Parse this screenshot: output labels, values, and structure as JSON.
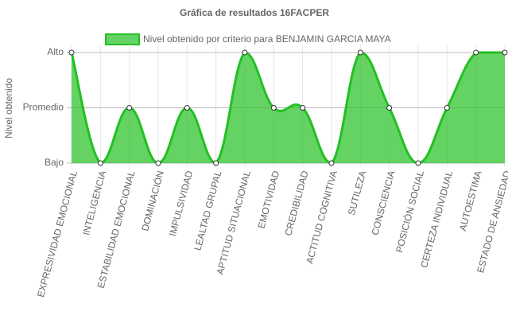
{
  "chart_data": {
    "type": "line",
    "title": "Gráfica de resultados 16FACPER",
    "y_label": "Nivel obtenido",
    "categories": [
      "EXPRESIVIDAD EMOCIONAL",
      "INTELIGENCIA",
      "ESTABILIDAD EMOCIONAL",
      "DOMINACIÓN",
      "IMPULSIVIDAD",
      "LEALTAD GRUPAL",
      "APTITUD SITUACIONAL",
      "EMOTIVIDAD",
      "CREDIBILIDAD",
      "ACTITUD COGNITIVA",
      "SUTILEZA",
      "CONSCIENCIA",
      "POSICIÓN SOCIAL",
      "CERTEZA INDIVIDUAL",
      "AUTOESTIMA",
      "ESTADO DE ANSIEDAD"
    ],
    "series": [
      {
        "name": "Nivel obtenido por criterio para BENJAMIN GARCIA MAYA",
        "color": "#22c022",
        "values": [
          3,
          1,
          2,
          1,
          2,
          1,
          3,
          2,
          2,
          1,
          3,
          2,
          1,
          2,
          3,
          3
        ]
      }
    ],
    "fill": true,
    "ylim": [
      1,
      3
    ],
    "yticks": [
      {
        "value": 1,
        "label": "Bajo"
      },
      {
        "value": 2,
        "label": "Promedio"
      },
      {
        "value": 3,
        "label": "Alto"
      }
    ],
    "grid": true
  }
}
